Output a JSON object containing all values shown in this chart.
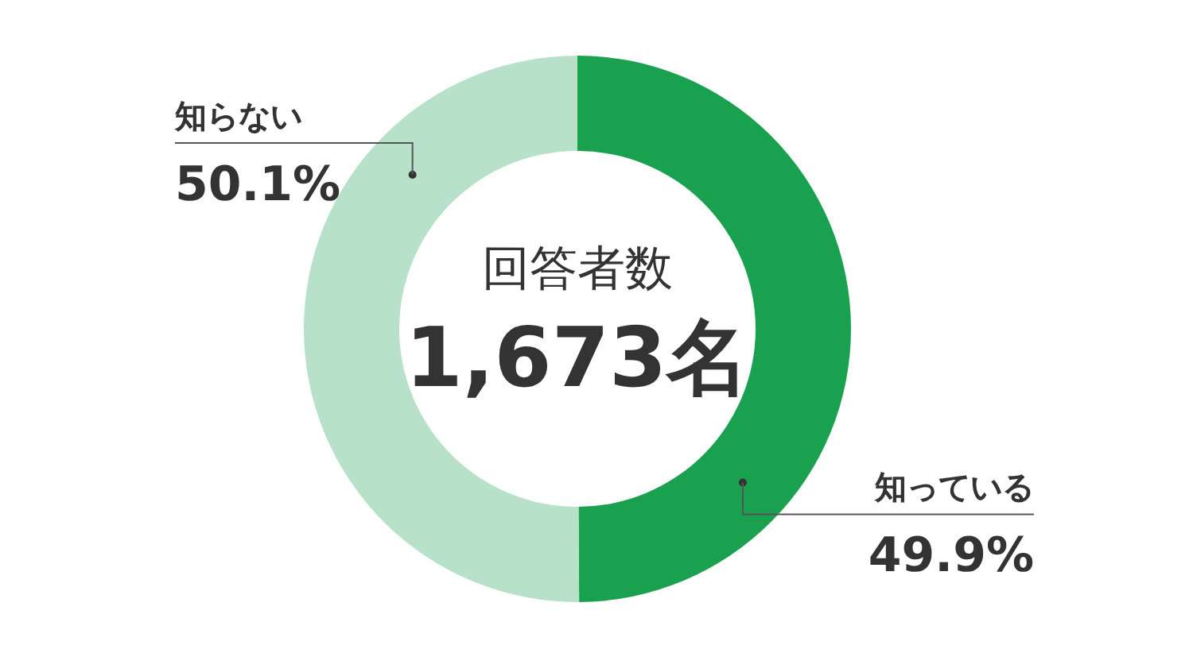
{
  "chart_data": {
    "type": "donut",
    "categories": [
      "知っている",
      "知らない"
    ],
    "values": [
      49.9,
      50.1
    ],
    "colors": [
      "#1aa14f",
      "#b8e1c9"
    ],
    "value_labels": [
      "49.9%",
      "50.1%"
    ],
    "annotations": [
      "回答者数",
      "1,673名"
    ]
  }
}
